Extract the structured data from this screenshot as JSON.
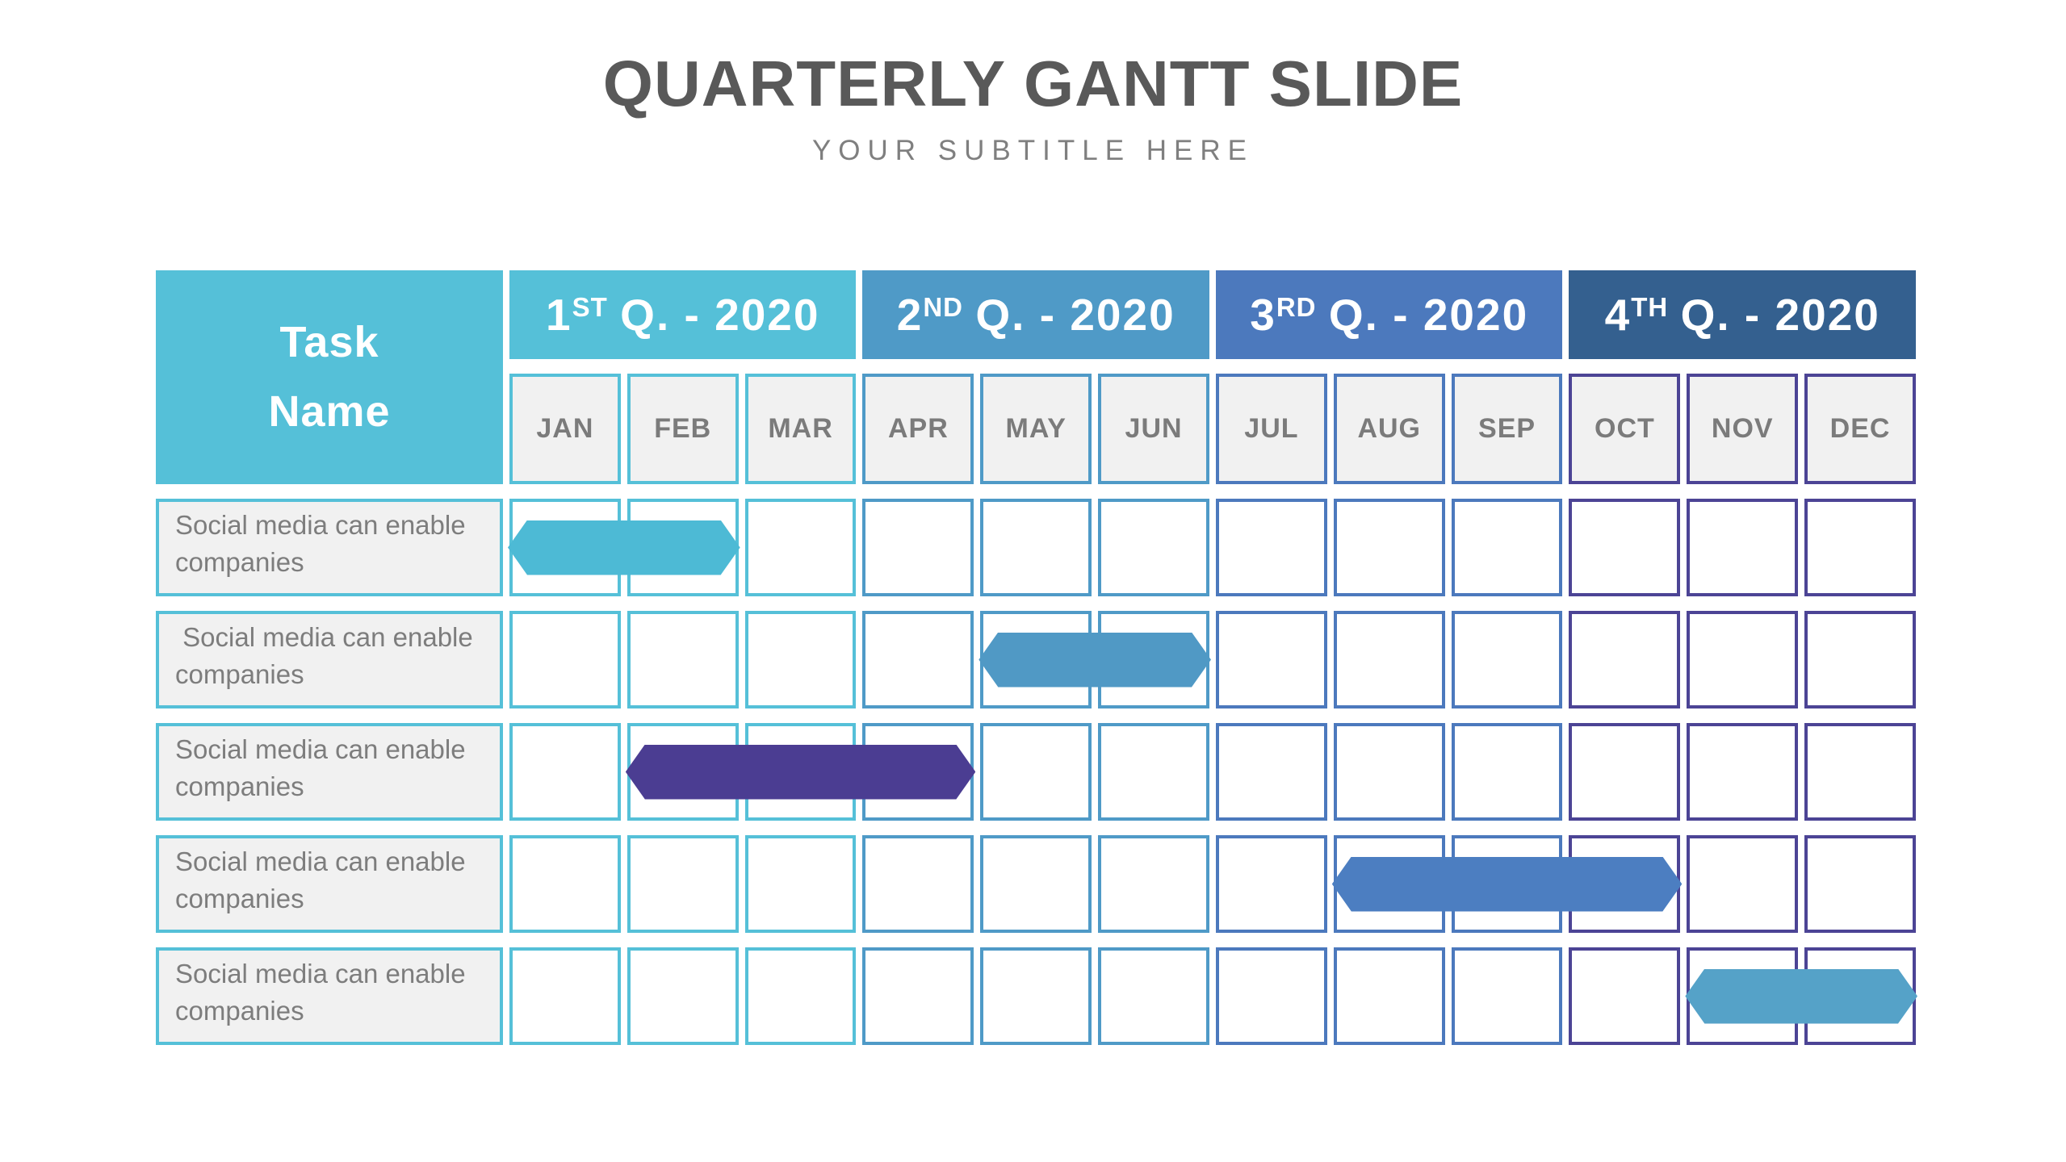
{
  "slide": {
    "title": "QUARTERLY GANTT SLIDE",
    "subtitle": "YOUR SUBTITLE HERE",
    "colors": {
      "background": "#ffffff",
      "title_text": "#595959",
      "subtitle_text": "#7f7f7f",
      "cell_fill": "#f1f1f1",
      "month_label": "#7b7b7b",
      "task_label": "#7d7d7d"
    }
  },
  "gantt": {
    "task_column_header": "Task\nName",
    "task_header_bg": "#55c0d8",
    "task_cell_border": "#55c0d8",
    "quarters": [
      {
        "number": "1",
        "ordinal": "ST",
        "rest": "Q. - 2020",
        "bg": "#55c0d8",
        "month_border": "#55c0d8"
      },
      {
        "number": "2",
        "ordinal": "ND",
        "rest": "Q. - 2020",
        "bg": "#4f9ac7",
        "month_border": "#4f9ac7"
      },
      {
        "number": "3",
        "ordinal": "RD",
        "rest": "Q. - 2020",
        "bg": "#4c79bd",
        "month_border": "#4c79bd"
      },
      {
        "number": "4",
        "ordinal": "TH",
        "rest": "Q. - 2020",
        "bg": "#34608f",
        "month_border": "#4c4495"
      }
    ],
    "months": [
      "JAN",
      "FEB",
      "MAR",
      "APR",
      "MAY",
      "JUN",
      "JUL",
      "AUG",
      "SEP",
      "OCT",
      "NOV",
      "DEC"
    ],
    "tasks": [
      {
        "label": "Social media can enable companies"
      },
      {
        "label": " Social media can enable companies"
      },
      {
        "label": "Social media can enable companies"
      },
      {
        "label": "Social media can enable companies"
      },
      {
        "label": "Social media can enable companies"
      }
    ]
  },
  "chart_data": {
    "type": "bar",
    "variant": "gantt",
    "title": "QUARTERLY GANTT SLIDE",
    "subtitle": "YOUR SUBTITLE HERE",
    "x_categories": [
      "JAN",
      "FEB",
      "MAR",
      "APR",
      "MAY",
      "JUN",
      "JUL",
      "AUG",
      "SEP",
      "OCT",
      "NOV",
      "DEC"
    ],
    "quarter_groups": [
      "1ST Q. - 2020",
      "2ND Q. - 2020",
      "3RD Q. - 2020",
      "4TH Q. - 2020"
    ],
    "grid": "on",
    "legend": "none",
    "tasks": [
      {
        "name": "Social media can enable companies",
        "start_month": "JAN",
        "end_month": "FEB",
        "duration_months": 2,
        "color": "#4dbad5"
      },
      {
        "name": "Social media can enable companies",
        "start_month": "MAY",
        "end_month": "JUN",
        "duration_months": 2,
        "color": "#5099c5"
      },
      {
        "name": "Social media can enable companies",
        "start_month": "FEB",
        "end_month": "APR",
        "duration_months": 3,
        "color": "#4b3d92"
      },
      {
        "name": "Social media can enable companies",
        "start_month": "AUG",
        "end_month": "OCT",
        "duration_months": 3,
        "color": "#4c7ec1"
      },
      {
        "name": "Social media can enable companies",
        "start_month": "NOV",
        "end_month": "DEC",
        "duration_months": 2,
        "color": "#55a2c8"
      }
    ]
  }
}
